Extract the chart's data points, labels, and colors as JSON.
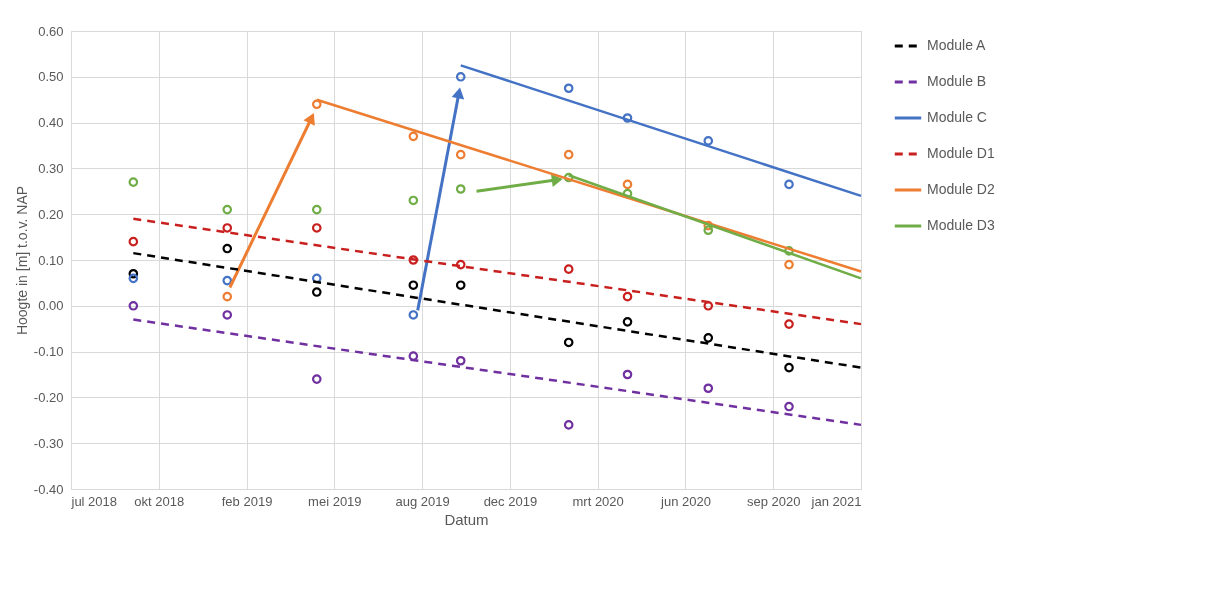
{
  "chart_data": {
    "type": "scatter",
    "xlabel": "Datum",
    "ylabel": "Hoogte in [m] t.o.v. NAP",
    "xlim": [
      "2018-07-19",
      "2021-01-04"
    ],
    "xticks": [
      {
        "value": "2018-07-19",
        "label": "jul 2018"
      },
      {
        "value": "2018-10-27",
        "label": "okt 2018"
      },
      {
        "value": "2019-02-04",
        "label": "feb 2019"
      },
      {
        "value": "2019-05-15",
        "label": "mei 2019"
      },
      {
        "value": "2019-08-23",
        "label": "aug 2019"
      },
      {
        "value": "2019-12-01",
        "label": "dec 2019"
      },
      {
        "value": "2020-03-10",
        "label": "mrt 2020"
      },
      {
        "value": "2020-06-18",
        "label": "jun 2020"
      },
      {
        "value": "2020-09-26",
        "label": "sep 2020"
      },
      {
        "value": "2021-01-04",
        "label": "jan 2021"
      }
    ],
    "ylim": [
      -0.4,
      0.6
    ],
    "yticks": [
      {
        "value": -0.4,
        "label": "-0.40"
      },
      {
        "value": -0.3,
        "label": "-0.30"
      },
      {
        "value": -0.2,
        "label": "-0.20"
      },
      {
        "value": -0.1,
        "label": "-0.10"
      },
      {
        "value": 0,
        "label": "0.00"
      },
      {
        "value": 0.1,
        "label": "0.10"
      },
      {
        "value": 0.2,
        "label": "0.20"
      },
      {
        "value": 0.3,
        "label": "0.30"
      },
      {
        "value": 0.4,
        "label": "0.40"
      },
      {
        "value": 0.5,
        "label": "0.50"
      },
      {
        "value": 0.6,
        "label": "0.60"
      }
    ],
    "grid": true,
    "legend": "right",
    "marker": "circle",
    "x": [
      "2018-09-28",
      "2019-01-13",
      "2019-04-25",
      "2019-08-13",
      "2019-10-06",
      "2020-02-06",
      "2020-04-13",
      "2020-07-14",
      "2020-10-14"
    ],
    "series": [
      {
        "color": "#000000",
        "values": [
          0.07,
          0.125,
          0.03,
          0.045,
          0.045,
          -0.08,
          -0.035,
          -0.07,
          -0.135
        ]
      },
      {
        "color": "#7030a0",
        "values": [
          0.0,
          -0.02,
          -0.16,
          -0.11,
          -0.12,
          -0.26,
          -0.15,
          -0.18,
          -0.22
        ]
      },
      {
        "color": "#4472c4",
        "values": [
          0.06,
          0.055,
          0.06,
          -0.02,
          0.5,
          0.475,
          0.41,
          0.36,
          0.265
        ]
      },
      {
        "color": "#c8201e",
        "values": [
          0.14,
          0.17,
          0.17,
          0.1,
          0.09,
          0.08,
          0.02,
          0.0,
          -0.04
        ]
      },
      {
        "color": "#ed7d31",
        "values": [
          null,
          0.02,
          0.44,
          0.37,
          0.33,
          0.33,
          0.265,
          0.175,
          0.09
        ]
      },
      {
        "color": "#70ad47",
        "values": [
          0.27,
          0.21,
          0.21,
          0.23,
          0.255,
          0.28,
          0.245,
          0.165,
          0.12
        ]
      },
      {
        "type": "line",
        "name": "Module A",
        "color": "#000000",
        "line_style": "dashed",
        "marker": "none",
        "x": [
          "2018-09-28",
          "2021-01-04"
        ],
        "values": [
          0.115,
          -0.135
        ]
      },
      {
        "type": "line",
        "name": "Module B",
        "color": "#7030a0",
        "line_style": "dashed",
        "marker": "none",
        "x": [
          "2018-09-28",
          "2021-01-04"
        ],
        "values": [
          -0.03,
          -0.26
        ]
      },
      {
        "type": "line",
        "name": "Module C",
        "color": "#4472c4",
        "line_style": "solid",
        "marker": "none",
        "x": [
          "2019-10-06",
          "2021-01-04"
        ],
        "values": [
          0.525,
          0.24
        ]
      },
      {
        "type": "line",
        "name": "Module D1",
        "color": "#c8201e",
        "line_style": "dashed",
        "marker": "none",
        "x": [
          "2018-09-28",
          "2021-01-04"
        ],
        "values": [
          0.19,
          -0.04
        ]
      },
      {
        "type": "line",
        "name": "Module D2",
        "color": "#ed7d31",
        "line_style": "solid",
        "marker": "none",
        "x": [
          "2019-04-25",
          "2021-01-04"
        ],
        "values": [
          0.45,
          0.075
        ]
      },
      {
        "type": "line",
        "name": "Module D3",
        "color": "#70ad47",
        "line_style": "solid",
        "marker": "none",
        "x": [
          "2020-02-06",
          "2021-01-04"
        ],
        "values": [
          0.285,
          0.06
        ]
      },
      {
        "type": "line",
        "color": "#ed7d31",
        "line_style": "solid",
        "marker": "triangle",
        "x": [
          "2019-01-16",
          "2019-04-19"
        ],
        "values": [
          0.04,
          0.41
        ]
      },
      {
        "type": "line",
        "color": "#4472c4",
        "line_style": "solid",
        "marker": "triangle",
        "x": [
          "2019-08-18",
          "2019-10-04"
        ],
        "values": [
          -0.01,
          0.465
        ]
      },
      {
        "type": "line",
        "color": "#70ad47",
        "line_style": "solid",
        "marker": "triangle",
        "x": [
          "2019-10-24",
          "2020-01-24"
        ],
        "values": [
          0.25,
          0.275
        ]
      }
    ]
  }
}
